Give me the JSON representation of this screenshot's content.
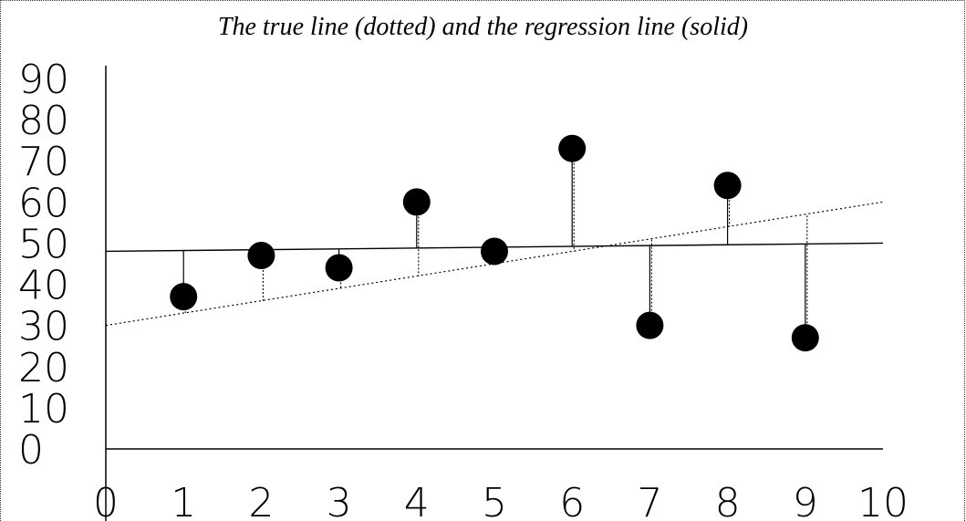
{
  "chart_data": {
    "type": "scatter",
    "title": "The true line (dotted) and the regression line (solid)",
    "xlabel": "",
    "ylabel": "",
    "xlim": [
      0,
      10
    ],
    "ylim": [
      0,
      90
    ],
    "x_ticks": [
      "0",
      "1",
      "2",
      "3",
      "4",
      "5",
      "6",
      "7",
      "8",
      "9",
      "10"
    ],
    "y_ticks": [
      "90",
      "80",
      "70",
      "60",
      "50",
      "40",
      "30",
      "20",
      "10",
      "0"
    ],
    "points": [
      {
        "x": 1,
        "y": 37
      },
      {
        "x": 2,
        "y": 47
      },
      {
        "x": 3,
        "y": 44
      },
      {
        "x": 4,
        "y": 60
      },
      {
        "x": 5,
        "y": 48
      },
      {
        "x": 6,
        "y": 73
      },
      {
        "x": 7,
        "y": 30
      },
      {
        "x": 8,
        "y": 64
      },
      {
        "x": 9,
        "y": 27
      }
    ],
    "true_line": {
      "style": "dotted",
      "intercept": 30,
      "slope": 3
    },
    "regression_line": {
      "style": "solid",
      "intercept": 48,
      "slope": 0.2
    },
    "residuals": "vertical segments from each point to the solid and dotted lines",
    "colors": {
      "points": "#000000",
      "lines": "#000000",
      "background": "#ffffff"
    }
  }
}
